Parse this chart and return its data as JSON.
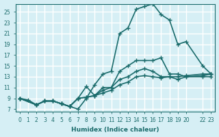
{
  "xlabel": "Humidex (Indice chaleur)",
  "bg_color": "#d6eff5",
  "grid_color": "#ffffff",
  "line_color": "#1a6b6b",
  "xlim": [
    -0.5,
    23.5
  ],
  "ylim": [
    6.5,
    26.5
  ],
  "xticks": [
    0,
    1,
    2,
    3,
    4,
    5,
    6,
    7,
    8,
    9,
    10,
    11,
    12,
    13,
    14,
    15,
    16,
    17,
    18,
    19,
    20,
    22,
    23
  ],
  "yticks": [
    7,
    9,
    11,
    13,
    15,
    17,
    19,
    21,
    23,
    25
  ],
  "line1_x": [
    0,
    1,
    2,
    3,
    4,
    5,
    6,
    7,
    8,
    9,
    10,
    11,
    12,
    13,
    14,
    15,
    16,
    17,
    18,
    19,
    20,
    22,
    23
  ],
  "line1_y": [
    9,
    8.7,
    7.8,
    8.5,
    8.5,
    8,
    7.5,
    7,
    9,
    11.5,
    13.5,
    14,
    21,
    22,
    25.5,
    26,
    26.5,
    24.5,
    23.5,
    19,
    19.5,
    15,
    13.5
  ],
  "line2_x": [
    0,
    2,
    3,
    4,
    5,
    6,
    7,
    8,
    9,
    10,
    11,
    12,
    13,
    14,
    15,
    16,
    17,
    18,
    19,
    20,
    22,
    23
  ],
  "line2_y": [
    9,
    7.8,
    8.5,
    8.5,
    8,
    7.5,
    9,
    11.2,
    9.5,
    11,
    11,
    14,
    15,
    16,
    16,
    16,
    16.5,
    13.5,
    13.5,
    13,
    13,
    13
  ],
  "line3_x": [
    0,
    2,
    3,
    4,
    5,
    6,
    7,
    8,
    9,
    10,
    11,
    12,
    13,
    14,
    15,
    16,
    17,
    18,
    19,
    20,
    22,
    23
  ],
  "line3_y": [
    9,
    7.8,
    8.5,
    8.5,
    8,
    7.5,
    9,
    9.2,
    9.5,
    10.5,
    11,
    12.5,
    13,
    14,
    14.5,
    14,
    13,
    13,
    12.5,
    13,
    13.2,
    13.5
  ],
  "line4_x": [
    0,
    2,
    3,
    4,
    5,
    6,
    7,
    8,
    9,
    10,
    11,
    12,
    13,
    14,
    15,
    16,
    17,
    18,
    19,
    20,
    22,
    23
  ],
  "line4_y": [
    9,
    7.8,
    8.5,
    8.5,
    8,
    7.5,
    9,
    9.2,
    9.5,
    10,
    10.5,
    11.5,
    12,
    13,
    13.2,
    13,
    12.8,
    13,
    13,
    13.2,
    13.5,
    13.5
  ]
}
